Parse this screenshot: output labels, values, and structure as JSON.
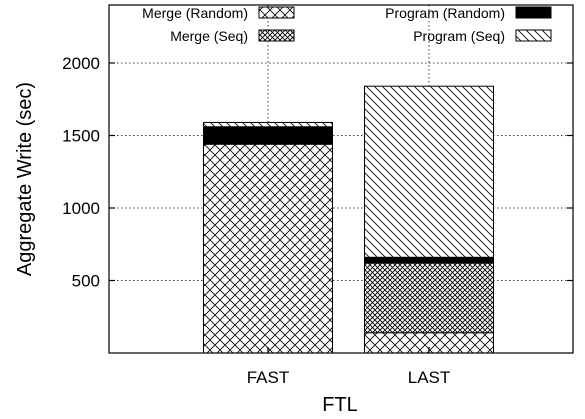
{
  "chart_data": {
    "type": "bar",
    "stacked": true,
    "categories": [
      "FAST",
      "LAST"
    ],
    "xlabel": "FTL",
    "ylabel": "Aggregate Write (sec)",
    "ylim": [
      0,
      2400
    ],
    "yticks": [
      500,
      1000,
      1500,
      2000
    ],
    "grid": true,
    "legend_position": "top",
    "series": [
      {
        "name": "Merge (Random)",
        "pattern": "crosshatch",
        "values": [
          1440,
          140
        ]
      },
      {
        "name": "Merge (Seq)",
        "pattern": "dense-crosshatch",
        "values": [
          0,
          480
        ]
      },
      {
        "name": "Program (Random)",
        "pattern": "solid",
        "color": "#000000",
        "values": [
          120,
          40
        ]
      },
      {
        "name": "Program (Seq)",
        "pattern": "diagonal",
        "values": [
          30,
          1180
        ]
      }
    ]
  }
}
